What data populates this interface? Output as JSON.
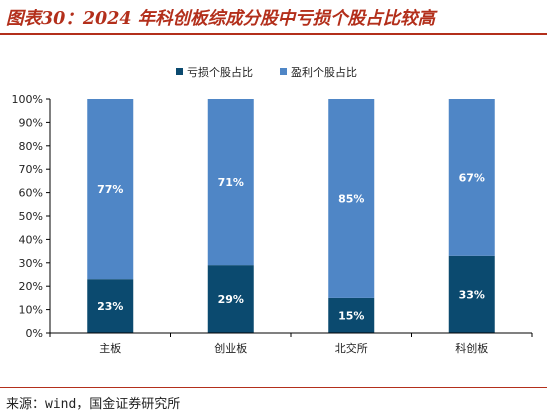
{
  "page": {
    "title": "图表30：2024 年科创板综成分股中亏损个股占比较高",
    "source": "来源：wind，国金证券研究所"
  },
  "colors": {
    "title": "#b32f1b",
    "loss": "#0b4a6f",
    "profit": "#4f86c6"
  },
  "chart_data": {
    "type": "bar",
    "stacked": true,
    "categories": [
      "主板",
      "创业板",
      "北交所",
      "科创板"
    ],
    "series": [
      {
        "name": "亏损个股占比",
        "values": [
          23,
          29,
          15,
          33
        ],
        "labels": [
          "23%",
          "29%",
          "15%",
          "33%"
        ]
      },
      {
        "name": "盈利个股占比",
        "values": [
          77,
          71,
          85,
          67
        ],
        "labels": [
          "77%",
          "71%",
          "85%",
          "67%"
        ]
      }
    ],
    "ylim": [
      0,
      100
    ],
    "yticks": [
      "0%",
      "10%",
      "20%",
      "30%",
      "40%",
      "50%",
      "60%",
      "70%",
      "80%",
      "90%",
      "100%"
    ],
    "legend_position": "top",
    "grid": false
  }
}
